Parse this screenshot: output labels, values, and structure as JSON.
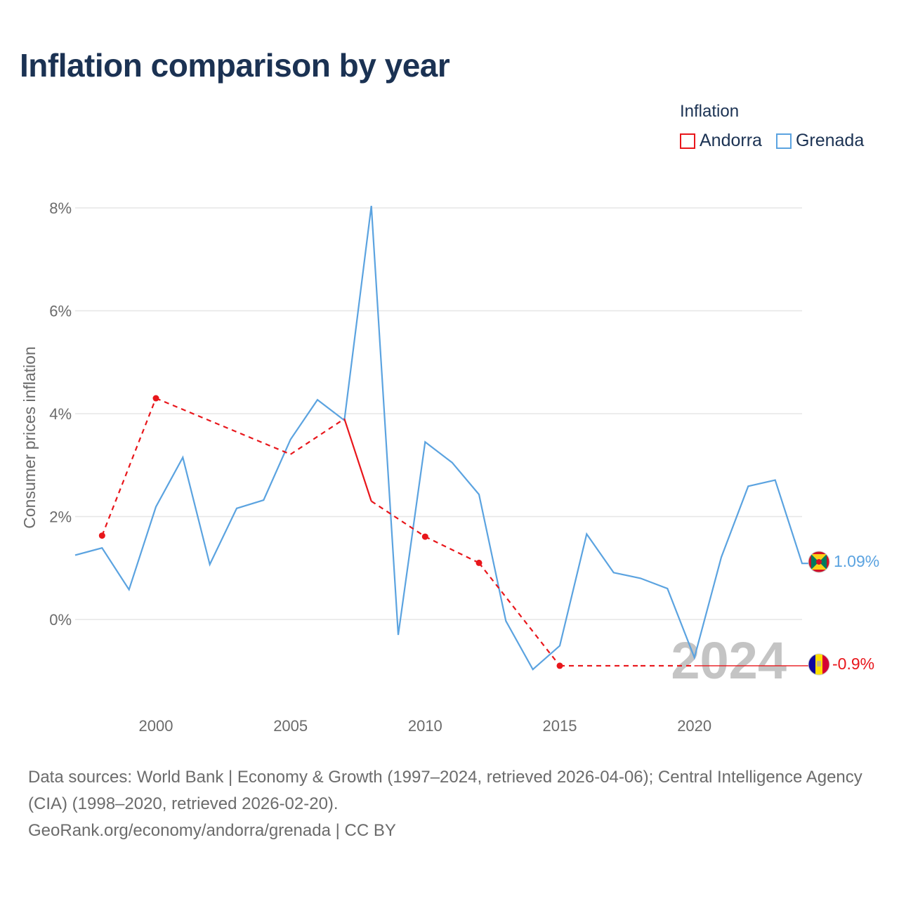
{
  "title": "Inflation comparison by year",
  "legend": {
    "title": "Inflation",
    "items": [
      {
        "label": "Andorra",
        "color": "#e8161b"
      },
      {
        "label": "Grenada",
        "color": "#5ba3e0"
      }
    ]
  },
  "year_watermark": "2024",
  "end_labels": {
    "grenada": "1.09%",
    "andorra": "-0.9%"
  },
  "footer": {
    "sources": "Data sources: World Bank | Economy & Growth (1997–2024, retrieved 2026-04-06); Central Intelligence Agency (CIA) (1998–2020, retrieved 2026-02-20).",
    "site": "GeoRank.org/economy/andorra/grenada | CC BY"
  },
  "colors": {
    "andorra": "#e8161b",
    "grenada": "#5ba3e0",
    "grid": "#e6e6e6",
    "axis_text": "#6b6b6b",
    "watermark": "#c4c4c4"
  },
  "chart_data": {
    "type": "line",
    "title": "Inflation comparison by year",
    "xlabel": "",
    "ylabel": "Consumer prices inflation",
    "xlim": [
      1997,
      2024
    ],
    "ylim": [
      -1.5,
      8
    ],
    "x_ticks": [
      2000,
      2005,
      2010,
      2015,
      2020
    ],
    "y_ticks": [
      0,
      2,
      4,
      6,
      8
    ],
    "y_tick_labels": [
      "0%",
      "2%",
      "4%",
      "6%",
      "8%"
    ],
    "grid": true,
    "legend_position": "top-right",
    "series": [
      {
        "name": "Grenada",
        "x": [
          1997,
          1998,
          1999,
          2000,
          2001,
          2002,
          2003,
          2004,
          2005,
          2006,
          2007,
          2008,
          2009,
          2010,
          2011,
          2012,
          2013,
          2014,
          2015,
          2016,
          2017,
          2018,
          2019,
          2020,
          2021,
          2022,
          2023,
          2024
        ],
        "values": [
          1.25,
          1.39,
          0.58,
          2.19,
          3.15,
          1.07,
          2.16,
          2.32,
          3.5,
          4.27,
          3.87,
          8.04,
          -0.3,
          3.45,
          3.05,
          2.43,
          -0.03,
          -0.97,
          -0.51,
          1.66,
          0.91,
          0.8,
          0.6,
          -0.74,
          1.21,
          2.59,
          2.71,
          1.09
        ]
      },
      {
        "name": "Andorra",
        "x": [
          1998,
          2000,
          2005,
          2007,
          2008,
          2010,
          2012,
          2015,
          2018,
          2020,
          2024
        ],
        "values": [
          1.63,
          4.3,
          3.21,
          3.9,
          2.3,
          1.61,
          1.1,
          -0.9,
          -0.9,
          -0.9,
          -0.9
        ],
        "markers_at": [
          1998,
          2000,
          2010,
          2012,
          2015
        ]
      }
    ]
  }
}
